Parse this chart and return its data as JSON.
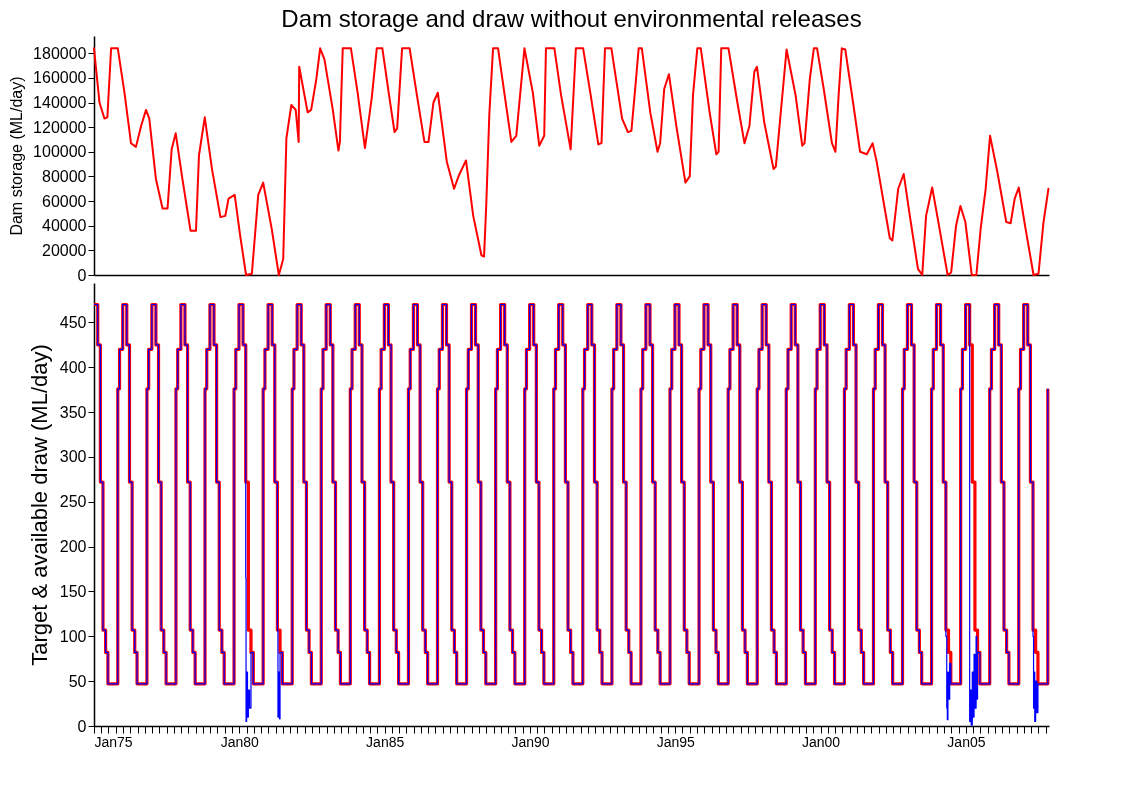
{
  "chart_data": [
    {
      "type": "line",
      "title": "Dam storage and draw without environmental releases",
      "ylabel": "Dam storage (ML/day)",
      "tick_labels": "y",
      "xlim": [
        "1975-01-01",
        "2007-11-11"
      ],
      "ylim": [
        0,
        194000
      ],
      "yticks": [
        0,
        20000,
        40000,
        60000,
        80000,
        100000,
        120000,
        140000,
        160000,
        180000
      ],
      "series": [
        {
          "color": "#ff0000",
          "x": [
            "1975-01-01",
            "1975-03-11",
            "1975-05-12",
            "1975-06-18",
            "1975-08-04",
            "1975-10-27",
            "1976-01-19",
            "1976-04-10",
            "1976-06-11",
            "1976-08-15",
            "1976-10-16",
            "1976-11-26",
            "1977-02-17",
            "1977-05-12",
            "1977-07-13",
            "1977-09-03",
            "1977-10-24",
            "1978-01-16",
            "1978-04-28",
            "1978-07-06",
            "1978-08-12",
            "1978-10-24",
            "1979-01-23",
            "1979-05-09",
            "1979-07-09",
            "1979-08-19",
            "1979-11-04",
            "1980-01-12",
            "1980-03-26",
            "1980-06-07",
            "1980-08-26",
            "1980-10-27",
            "1981-02-10",
            "1981-05-12",
            "1981-07-06",
            "1981-08-15",
            "1981-10-16",
            "1981-12-10",
            "1982-01-16",
            "1982-01-23",
            "1982-05-09",
            "1982-06-22",
            "1982-08-26",
            "1982-10-13",
            "1982-12-06",
            "1983-03-19",
            "1983-05-31",
            "1983-06-18",
            "1983-07-24",
            "1983-11-04",
            "1984-01-27",
            "1984-04-28",
            "1984-07-21",
            "1984-09-24",
            "1984-12-03",
            "1985-02-25",
            "1985-05-05",
            "1985-06-07",
            "1985-08-08",
            "1985-11-11",
            "1986-02-10",
            "1986-05-16",
            "1986-07-06",
            "1986-09-06",
            "1986-10-31",
            "1987-02-21",
            "1987-05-23",
            "1987-07-24",
            "1987-10-20",
            "1988-01-19",
            "1988-05-01",
            "1988-06-03",
            "1988-07-02",
            "1988-08-08",
            "1988-09-24",
            "1988-11-26",
            "1989-02-17",
            "1989-05-12",
            "1989-07-13",
            "1989-10-24",
            "1990-02-06",
            "1990-04-28",
            "1990-06-29",
            "1990-07-21",
            "1990-11-04",
            "1991-01-27",
            "1991-05-27",
            "1991-08-01",
            "1991-10-31",
            "1992-02-03",
            "1992-05-09",
            "1992-06-18",
            "1992-08-01",
            "1992-10-20",
            "1993-03-04",
            "1993-05-16",
            "1993-06-29",
            "1993-08-26",
            "1993-09-28",
            "1993-11-07",
            "1994-02-21",
            "1994-05-23",
            "1994-06-25",
            "1994-08-15",
            "1994-10-13",
            "1995-01-19",
            "1995-05-09",
            "1995-07-02",
            "1995-08-12",
            "1995-10-05",
            "1995-11-18",
            "1996-03-08",
            "1996-05-31",
            "1996-06-29",
            "1996-08-01",
            "1996-10-31",
            "1997-02-25",
            "1997-05-20",
            "1997-07-21",
            "1997-09-21",
            "1997-10-24",
            "1998-01-23",
            "1998-05-20",
            "1998-06-18",
            "1998-08-19",
            "1998-10-31",
            "1999-02-21",
            "1999-05-16",
            "1999-06-14",
            "1999-08-19",
            "1999-10-09",
            "1999-11-18",
            "2000-02-10",
            "2000-05-23",
            "2000-07-06",
            "2000-08-15",
            "2000-09-24",
            "2000-11-07",
            "2001-02-17",
            "2001-05-12",
            "2001-08-04",
            "2001-10-16",
            "2001-12-06",
            "2002-05-20",
            "2002-06-22",
            "2002-09-03",
            "2002-11-11",
            "2003-01-27",
            "2003-05-09",
            "2003-07-02",
            "2003-08-19",
            "2003-11-04",
            "2004-02-03",
            "2004-05-16",
            "2004-06-29",
            "2004-08-30",
            "2004-10-24",
            "2004-12-25",
            "2005-03-15",
            "2005-05-12",
            "2005-07-06",
            "2005-09-06",
            "2005-10-31",
            "2006-01-30",
            "2006-05-23",
            "2006-07-17",
            "2006-09-06",
            "2006-10-27",
            "2007-01-19",
            "2007-05-01",
            "2007-07-02",
            "2007-09-03",
            "2007-11-04"
          ],
          "values": [
            184000,
            140000,
            127000,
            128000,
            184000,
            184000,
            148000,
            107000,
            104000,
            121000,
            134000,
            127000,
            78000,
            54000,
            54000,
            102000,
            115000,
            78000,
            36000,
            36000,
            97000,
            128000,
            86000,
            47000,
            48000,
            62000,
            65000,
            32000,
            0,
            1000,
            65000,
            75000,
            38000,
            0,
            13000,
            111000,
            138000,
            134000,
            108000,
            169000,
            132000,
            134000,
            159000,
            184000,
            175000,
            135000,
            101000,
            108000,
            184000,
            184000,
            148000,
            103000,
            143000,
            184000,
            184000,
            146000,
            116000,
            119000,
            184000,
            184000,
            146000,
            108000,
            108000,
            140000,
            148000,
            92000,
            70000,
            81000,
            93000,
            48000,
            16000,
            15000,
            59000,
            130000,
            184000,
            184000,
            146000,
            108000,
            113000,
            184000,
            148000,
            105000,
            113000,
            184000,
            184000,
            146000,
            102000,
            184000,
            184000,
            146000,
            106000,
            107000,
            184000,
            184000,
            127000,
            116000,
            117000,
            159000,
            184000,
            184000,
            132000,
            100000,
            107000,
            151000,
            163000,
            119000,
            75000,
            80000,
            146000,
            184000,
            184000,
            132000,
            98000,
            100000,
            184000,
            184000,
            138000,
            107000,
            121000,
            165000,
            169000,
            124000,
            86000,
            88000,
            132000,
            183000,
            146000,
            105000,
            107000,
            159000,
            184000,
            184000,
            151000,
            107000,
            100000,
            146000,
            184000,
            183000,
            138000,
            100000,
            98000,
            107000,
            92000,
            30000,
            28000,
            70000,
            82000,
            48000,
            5000,
            0,
            48000,
            71000,
            38000,
            0,
            2000,
            40000,
            56000,
            43000,
            0,
            0,
            38000,
            70000,
            113000,
            84000,
            43000,
            42000,
            62000,
            71000,
            38000,
            0,
            1000,
            43000,
            70000
          ]
        }
      ]
    },
    {
      "type": "step",
      "ylabel": "Target & available draw (ML/day)",
      "xlim": [
        "1975-01-01",
        "2007-11-11"
      ],
      "ylim": [
        0,
        494
      ],
      "yticks": [
        0,
        50,
        100,
        150,
        200,
        250,
        300,
        350,
        400,
        450
      ],
      "xticks": [
        {
          "value": "1975-01-01",
          "label": "Jan75"
        },
        {
          "value": "1975-04-01",
          "label": null
        },
        {
          "value": "1975-07-01",
          "label": null
        },
        {
          "value": "1975-10-01",
          "label": null
        },
        {
          "value": "1976-01-01",
          "label": null
        },
        {
          "value": "1976-04-01",
          "label": null
        },
        {
          "value": "1976-07-01",
          "label": null
        },
        {
          "value": "1976-10-01",
          "label": null
        },
        {
          "value": "1977-01-01",
          "label": null
        },
        {
          "value": "1977-04-01",
          "label": null
        },
        {
          "value": "1977-07-01",
          "label": null
        },
        {
          "value": "1977-10-01",
          "label": null
        },
        {
          "value": "1978-01-01",
          "label": null
        },
        {
          "value": "1978-04-01",
          "label": null
        },
        {
          "value": "1978-07-01",
          "label": null
        },
        {
          "value": "1978-10-01",
          "label": null
        },
        {
          "value": "1979-01-01",
          "label": null
        },
        {
          "value": "1979-04-01",
          "label": null
        },
        {
          "value": "1979-07-01",
          "label": null
        },
        {
          "value": "1979-10-01",
          "label": null
        },
        {
          "value": "1980-01-01",
          "label": "Jan80"
        },
        {
          "value": "1980-04-01",
          "label": null
        },
        {
          "value": "1980-07-01",
          "label": null
        },
        {
          "value": "1980-10-01",
          "label": null
        },
        {
          "value": "1981-01-01",
          "label": null
        },
        {
          "value": "1981-04-01",
          "label": null
        },
        {
          "value": "1981-07-01",
          "label": null
        },
        {
          "value": "1981-10-01",
          "label": null
        },
        {
          "value": "1982-01-01",
          "label": null
        },
        {
          "value": "1982-04-01",
          "label": null
        },
        {
          "value": "1982-07-01",
          "label": null
        },
        {
          "value": "1982-10-01",
          "label": null
        },
        {
          "value": "1983-01-01",
          "label": null
        },
        {
          "value": "1983-04-01",
          "label": null
        },
        {
          "value": "1983-07-01",
          "label": null
        },
        {
          "value": "1983-10-01",
          "label": null
        },
        {
          "value": "1984-01-01",
          "label": null
        },
        {
          "value": "1984-04-01",
          "label": null
        },
        {
          "value": "1984-07-01",
          "label": null
        },
        {
          "value": "1984-10-01",
          "label": null
        },
        {
          "value": "1985-01-01",
          "label": "Jan85"
        },
        {
          "value": "1985-04-01",
          "label": null
        },
        {
          "value": "1985-07-01",
          "label": null
        },
        {
          "value": "1985-10-01",
          "label": null
        },
        {
          "value": "1986-01-01",
          "label": null
        },
        {
          "value": "1986-04-01",
          "label": null
        },
        {
          "value": "1986-07-01",
          "label": null
        },
        {
          "value": "1986-10-01",
          "label": null
        },
        {
          "value": "1987-01-01",
          "label": null
        },
        {
          "value": "1987-04-01",
          "label": null
        },
        {
          "value": "1987-07-01",
          "label": null
        },
        {
          "value": "1987-10-01",
          "label": null
        },
        {
          "value": "1988-01-01",
          "label": null
        },
        {
          "value": "1988-04-01",
          "label": null
        },
        {
          "value": "1988-07-01",
          "label": null
        },
        {
          "value": "1988-10-01",
          "label": null
        },
        {
          "value": "1989-01-01",
          "label": null
        },
        {
          "value": "1989-04-01",
          "label": null
        },
        {
          "value": "1989-07-01",
          "label": null
        },
        {
          "value": "1989-10-01",
          "label": null
        },
        {
          "value": "1990-01-01",
          "label": "Jan90"
        },
        {
          "value": "1990-04-01",
          "label": null
        },
        {
          "value": "1990-07-01",
          "label": null
        },
        {
          "value": "1990-10-01",
          "label": null
        },
        {
          "value": "1991-01-01",
          "label": null
        },
        {
          "value": "1991-04-01",
          "label": null
        },
        {
          "value": "1991-07-01",
          "label": null
        },
        {
          "value": "1991-10-01",
          "label": null
        },
        {
          "value": "1992-01-01",
          "label": null
        },
        {
          "value": "1992-04-01",
          "label": null
        },
        {
          "value": "1992-07-01",
          "label": null
        },
        {
          "value": "1992-10-01",
          "label": null
        },
        {
          "value": "1993-01-01",
          "label": null
        },
        {
          "value": "1993-04-01",
          "label": null
        },
        {
          "value": "1993-07-01",
          "label": null
        },
        {
          "value": "1993-10-01",
          "label": null
        },
        {
          "value": "1994-01-01",
          "label": null
        },
        {
          "value": "1994-04-01",
          "label": null
        },
        {
          "value": "1994-07-01",
          "label": null
        },
        {
          "value": "1994-10-01",
          "label": null
        },
        {
          "value": "1995-01-01",
          "label": "Jan95"
        },
        {
          "value": "1995-04-01",
          "label": null
        },
        {
          "value": "1995-07-01",
          "label": null
        },
        {
          "value": "1995-10-01",
          "label": null
        },
        {
          "value": "1996-01-01",
          "label": null
        },
        {
          "value": "1996-04-01",
          "label": null
        },
        {
          "value": "1996-07-01",
          "label": null
        },
        {
          "value": "1996-10-01",
          "label": null
        },
        {
          "value": "1997-01-01",
          "label": null
        },
        {
          "value": "1997-04-01",
          "label": null
        },
        {
          "value": "1997-07-01",
          "label": null
        },
        {
          "value": "1997-10-01",
          "label": null
        },
        {
          "value": "1998-01-01",
          "label": null
        },
        {
          "value": "1998-04-01",
          "label": null
        },
        {
          "value": "1998-07-01",
          "label": null
        },
        {
          "value": "1998-10-01",
          "label": null
        },
        {
          "value": "1999-01-01",
          "label": null
        },
        {
          "value": "1999-04-01",
          "label": null
        },
        {
          "value": "1999-07-01",
          "label": null
        },
        {
          "value": "1999-10-01",
          "label": null
        },
        {
          "value": "2000-01-01",
          "label": "Jan00"
        },
        {
          "value": "2000-04-01",
          "label": null
        },
        {
          "value": "2000-07-01",
          "label": null
        },
        {
          "value": "2000-10-01",
          "label": null
        },
        {
          "value": "2001-01-01",
          "label": null
        },
        {
          "value": "2001-04-01",
          "label": null
        },
        {
          "value": "2001-07-01",
          "label": null
        },
        {
          "value": "2001-10-01",
          "label": null
        },
        {
          "value": "2002-01-01",
          "label": null
        },
        {
          "value": "2002-04-01",
          "label": null
        },
        {
          "value": "2002-07-01",
          "label": null
        },
        {
          "value": "2002-10-01",
          "label": null
        },
        {
          "value": "2003-01-01",
          "label": null
        },
        {
          "value": "2003-04-01",
          "label": null
        },
        {
          "value": "2003-07-01",
          "label": null
        },
        {
          "value": "2003-10-01",
          "label": null
        },
        {
          "value": "2004-01-01",
          "label": null
        },
        {
          "value": "2004-04-01",
          "label": null
        },
        {
          "value": "2004-07-01",
          "label": null
        },
        {
          "value": "2004-10-01",
          "label": null
        },
        {
          "value": "2005-01-01",
          "label": "Jan05"
        },
        {
          "value": "2005-04-01",
          "label": null
        },
        {
          "value": "2005-07-01",
          "label": null
        },
        {
          "value": "2005-10-01",
          "label": null
        },
        {
          "value": "2006-01-01",
          "label": null
        },
        {
          "value": "2006-04-01",
          "label": null
        },
        {
          "value": "2006-07-01",
          "label": null
        },
        {
          "value": "2006-10-01",
          "label": null
        },
        {
          "value": "2007-01-01",
          "label": null
        },
        {
          "value": "2007-04-01",
          "label": null
        },
        {
          "value": "2007-07-01",
          "label": null
        },
        {
          "value": "2007-10-01",
          "label": null
        }
      ],
      "x": [
        "1975-01-01",
        "1975-02-17",
        "1975-03-22",
        "1975-04-24",
        "1975-05-27",
        "1975-06-25",
        "1975-10-27",
        "1975-11-18",
        "1975-12-28",
        "1976-02-17",
        "1976-03-22",
        "1976-04-24",
        "1976-05-27",
        "1976-06-25",
        "1976-10-27",
        "1976-11-18",
        "1976-12-28",
        "1977-02-17",
        "1977-03-22",
        "1977-04-24",
        "1977-05-27",
        "1977-06-25",
        "1977-10-27",
        "1977-11-18",
        "1977-12-28",
        "1978-02-17",
        "1978-03-22",
        "1978-04-24",
        "1978-05-27",
        "1978-06-25",
        "1978-10-27",
        "1978-11-18",
        "1978-12-28",
        "1979-02-17",
        "1979-03-22",
        "1979-04-24",
        "1979-05-27",
        "1979-06-25",
        "1979-10-27",
        "1979-11-18",
        "1979-12-28",
        "1980-02-17",
        "1980-03-22",
        "1980-03-26",
        "1980-04-02",
        "1980-04-13",
        "1980-04-24",
        "1980-05-09",
        "1980-05-27",
        "1980-06-25",
        "1980-10-27",
        "1980-11-18",
        "1980-12-28",
        "1981-02-17",
        "1981-03-22",
        "1981-04-24",
        "1981-05-01",
        "1981-05-09",
        "1981-05-20",
        "1981-05-27",
        "1981-06-25",
        "1981-10-27",
        "1981-11-18",
        "1981-12-28",
        "1982-02-17",
        "1982-03-22",
        "1982-04-24",
        "1982-05-27",
        "1982-06-25",
        "1982-10-27",
        "1982-11-18",
        "1982-12-28",
        "1983-02-17",
        "1983-03-22",
        "1983-04-24",
        "1983-05-27",
        "1983-06-25",
        "1983-10-27",
        "1983-11-18",
        "1983-12-28",
        "1984-02-17",
        "1984-03-22",
        "1984-04-24",
        "1984-05-27",
        "1984-06-25",
        "1984-10-27",
        "1984-11-18",
        "1984-12-28",
        "1985-02-17",
        "1985-03-22",
        "1985-04-24",
        "1985-05-27",
        "1985-06-25",
        "1985-10-27",
        "1985-11-18",
        "1985-12-28",
        "1986-02-17",
        "1986-03-22",
        "1986-04-24",
        "1986-05-27",
        "1986-06-25",
        "1986-10-27",
        "1986-11-18",
        "1986-12-28",
        "1987-02-17",
        "1987-03-22",
        "1987-04-24",
        "1987-05-27",
        "1987-06-25",
        "1987-10-27",
        "1987-11-18",
        "1987-12-28",
        "1988-02-17",
        "1988-03-22",
        "1988-04-24",
        "1988-05-27",
        "1988-06-25",
        "1988-10-27",
        "1988-11-18",
        "1988-12-28",
        "1989-02-17",
        "1989-03-22",
        "1989-04-24",
        "1989-05-27",
        "1989-06-25",
        "1989-10-27",
        "1989-11-18",
        "1989-12-28",
        "1990-02-17",
        "1990-03-22",
        "1990-04-24",
        "1990-05-27",
        "1990-06-25",
        "1990-10-27",
        "1990-11-18",
        "1990-12-28",
        "1991-02-17",
        "1991-03-22",
        "1991-04-24",
        "1991-05-27",
        "1991-06-25",
        "1991-10-27",
        "1991-11-18",
        "1991-12-28",
        "1992-02-17",
        "1992-03-22",
        "1992-04-24",
        "1992-05-27",
        "1992-06-25",
        "1992-10-27",
        "1992-11-18",
        "1992-12-28",
        "1993-02-17",
        "1993-03-22",
        "1993-04-24",
        "1993-05-27",
        "1993-06-25",
        "1993-10-27",
        "1993-11-18",
        "1993-12-28",
        "1994-02-17",
        "1994-03-22",
        "1994-04-24",
        "1994-05-27",
        "1994-06-25",
        "1994-10-27",
        "1994-11-18",
        "1994-12-28",
        "1995-02-17",
        "1995-03-22",
        "1995-04-24",
        "1995-05-27",
        "1995-06-25",
        "1995-10-27",
        "1995-11-18",
        "1995-12-28",
        "1996-02-17",
        "1996-03-22",
        "1996-04-24",
        "1996-05-27",
        "1996-06-25",
        "1996-10-27",
        "1996-11-18",
        "1996-12-28",
        "1997-02-17",
        "1997-03-22",
        "1997-04-24",
        "1997-05-27",
        "1997-06-25",
        "1997-10-27",
        "1997-11-18",
        "1997-12-28",
        "1998-02-17",
        "1998-03-22",
        "1998-04-24",
        "1998-05-27",
        "1998-06-25",
        "1998-10-27",
        "1998-11-18",
        "1998-12-28",
        "1999-02-17",
        "1999-03-22",
        "1999-04-24",
        "1999-05-27",
        "1999-06-25",
        "1999-10-27",
        "1999-11-18",
        "1999-12-28",
        "2000-02-17",
        "2000-03-22",
        "2000-04-24",
        "2000-05-27",
        "2000-06-25",
        "2000-10-27",
        "2000-11-18",
        "2000-12-28",
        "2001-02-17",
        "2001-03-22",
        "2001-04-24",
        "2001-05-27",
        "2001-06-25",
        "2001-10-27",
        "2001-11-18",
        "2001-12-28",
        "2002-02-17",
        "2002-03-22",
        "2002-04-24",
        "2002-05-27",
        "2002-06-25",
        "2002-10-27",
        "2002-11-18",
        "2002-12-28",
        "2003-02-17",
        "2003-03-22",
        "2003-04-24",
        "2003-05-27",
        "2003-06-25",
        "2003-10-27",
        "2003-11-18",
        "2003-12-28",
        "2004-02-17",
        "2004-03-22",
        "2004-04-24",
        "2004-05-05",
        "2004-05-12",
        "2004-05-20",
        "2004-05-27",
        "2004-06-11",
        "2004-06-25",
        "2004-10-27",
        "2004-11-18",
        "2004-12-28",
        "2005-02-17",
        "2005-02-25",
        "2005-03-08",
        "2005-03-22",
        "2005-04-02",
        "2005-04-13",
        "2005-04-24",
        "2005-05-09",
        "2005-05-16",
        "2005-05-27",
        "2005-06-25",
        "2005-10-27",
        "2005-11-18",
        "2005-12-28",
        "2006-02-17",
        "2006-03-22",
        "2006-04-24",
        "2006-05-27",
        "2006-06-25",
        "2006-10-27",
        "2006-11-18",
        "2006-12-28",
        "2007-02-17",
        "2007-03-22",
        "2007-04-24",
        "2007-05-01",
        "2007-05-09",
        "2007-05-16",
        "2007-05-27",
        "2007-06-11",
        "2007-06-25",
        "2007-10-27"
      ],
      "series": [
        {
          "color": "#ff0000",
          "values": [
            470,
            425,
            272,
            107,
            82,
            47,
            376,
            420,
            470,
            425,
            272,
            107,
            82,
            47,
            376,
            420,
            470,
            425,
            272,
            107,
            82,
            47,
            376,
            420,
            470,
            425,
            272,
            107,
            82,
            47,
            376,
            420,
            470,
            425,
            272,
            107,
            82,
            47,
            376,
            420,
            470,
            425,
            272,
            272,
            272,
            272,
            107,
            107,
            82,
            47,
            376,
            420,
            470,
            425,
            272,
            107,
            107,
            107,
            107,
            82,
            47,
            376,
            420,
            470,
            425,
            272,
            107,
            82,
            47,
            376,
            420,
            470,
            425,
            272,
            107,
            82,
            47,
            376,
            420,
            470,
            425,
            272,
            107,
            82,
            47,
            376,
            420,
            470,
            425,
            272,
            107,
            82,
            47,
            376,
            420,
            470,
            425,
            272,
            107,
            82,
            47,
            376,
            420,
            470,
            425,
            272,
            107,
            82,
            47,
            376,
            420,
            470,
            425,
            272,
            107,
            82,
            47,
            376,
            420,
            470,
            425,
            272,
            107,
            82,
            47,
            376,
            420,
            470,
            425,
            272,
            107,
            82,
            47,
            376,
            420,
            470,
            425,
            272,
            107,
            82,
            47,
            376,
            420,
            470,
            425,
            272,
            107,
            82,
            47,
            376,
            420,
            470,
            425,
            272,
            107,
            82,
            47,
            376,
            420,
            470,
            425,
            272,
            107,
            82,
            47,
            376,
            420,
            470,
            425,
            272,
            107,
            82,
            47,
            376,
            420,
            470,
            425,
            272,
            107,
            82,
            47,
            376,
            420,
            470,
            425,
            272,
            107,
            82,
            47,
            376,
            420,
            470,
            425,
            272,
            107,
            82,
            47,
            376,
            420,
            470,
            425,
            272,
            107,
            82,
            47,
            376,
            420,
            470,
            425,
            272,
            107,
            82,
            47,
            376,
            420,
            470,
            425,
            272,
            107,
            82,
            47,
            376,
            420,
            470,
            425,
            272,
            107,
            82,
            47,
            376,
            420,
            470,
            425,
            272,
            107,
            82,
            47,
            376,
            420,
            470,
            425,
            272,
            107,
            107,
            107,
            107,
            82,
            82,
            47,
            376,
            420,
            470,
            425,
            425,
            425,
            272,
            272,
            272,
            107,
            107,
            107,
            82,
            47,
            376,
            420,
            470,
            425,
            272,
            107,
            82,
            47,
            376,
            420,
            470,
            425,
            272,
            107,
            107,
            107,
            107,
            82,
            82,
            47,
            376
          ]
        },
        {
          "color": "#0000ff",
          "values": [
            470,
            425,
            272,
            107,
            82,
            47,
            376,
            420,
            470,
            425,
            272,
            107,
            82,
            47,
            376,
            420,
            470,
            425,
            272,
            107,
            82,
            47,
            376,
            420,
            470,
            425,
            272,
            107,
            82,
            47,
            376,
            420,
            470,
            425,
            272,
            107,
            82,
            47,
            376,
            420,
            470,
            425,
            165,
            5,
            60,
            10,
            40,
            20,
            82,
            47,
            376,
            420,
            470,
            425,
            272,
            107,
            10,
            60,
            8,
            82,
            47,
            376,
            420,
            470,
            425,
            272,
            107,
            82,
            47,
            376,
            420,
            470,
            425,
            272,
            107,
            82,
            47,
            376,
            420,
            470,
            425,
            272,
            107,
            82,
            47,
            376,
            420,
            470,
            425,
            272,
            107,
            82,
            47,
            376,
            420,
            470,
            425,
            272,
            107,
            82,
            47,
            376,
            420,
            470,
            425,
            272,
            107,
            82,
            47,
            376,
            420,
            470,
            425,
            272,
            107,
            82,
            47,
            376,
            420,
            470,
            425,
            272,
            107,
            82,
            47,
            376,
            420,
            470,
            425,
            272,
            107,
            82,
            47,
            376,
            420,
            470,
            425,
            272,
            107,
            82,
            47,
            376,
            420,
            470,
            425,
            272,
            107,
            82,
            47,
            376,
            420,
            470,
            425,
            272,
            107,
            82,
            47,
            376,
            420,
            470,
            425,
            272,
            107,
            82,
            47,
            376,
            420,
            470,
            425,
            272,
            107,
            82,
            47,
            376,
            420,
            470,
            425,
            272,
            107,
            82,
            47,
            376,
            420,
            470,
            425,
            272,
            107,
            82,
            47,
            376,
            420,
            470,
            425,
            272,
            107,
            82,
            47,
            376,
            420,
            470,
            425,
            272,
            107,
            82,
            47,
            376,
            420,
            470,
            425,
            272,
            107,
            82,
            47,
            376,
            420,
            470,
            425,
            272,
            107,
            82,
            47,
            376,
            420,
            470,
            425,
            272,
            107,
            82,
            47,
            376,
            420,
            470,
            425,
            272,
            107,
            82,
            47,
            376,
            420,
            470,
            425,
            272,
            100,
            20,
            7,
            60,
            30,
            70,
            47,
            376,
            420,
            470,
            5,
            40,
            1,
            60,
            10,
            80,
            20,
            100,
            30,
            82,
            47,
            376,
            420,
            470,
            425,
            272,
            107,
            82,
            47,
            376,
            420,
            470,
            425,
            272,
            100,
            20,
            60,
            5,
            50,
            15,
            47,
            376
          ]
        }
      ]
    }
  ]
}
